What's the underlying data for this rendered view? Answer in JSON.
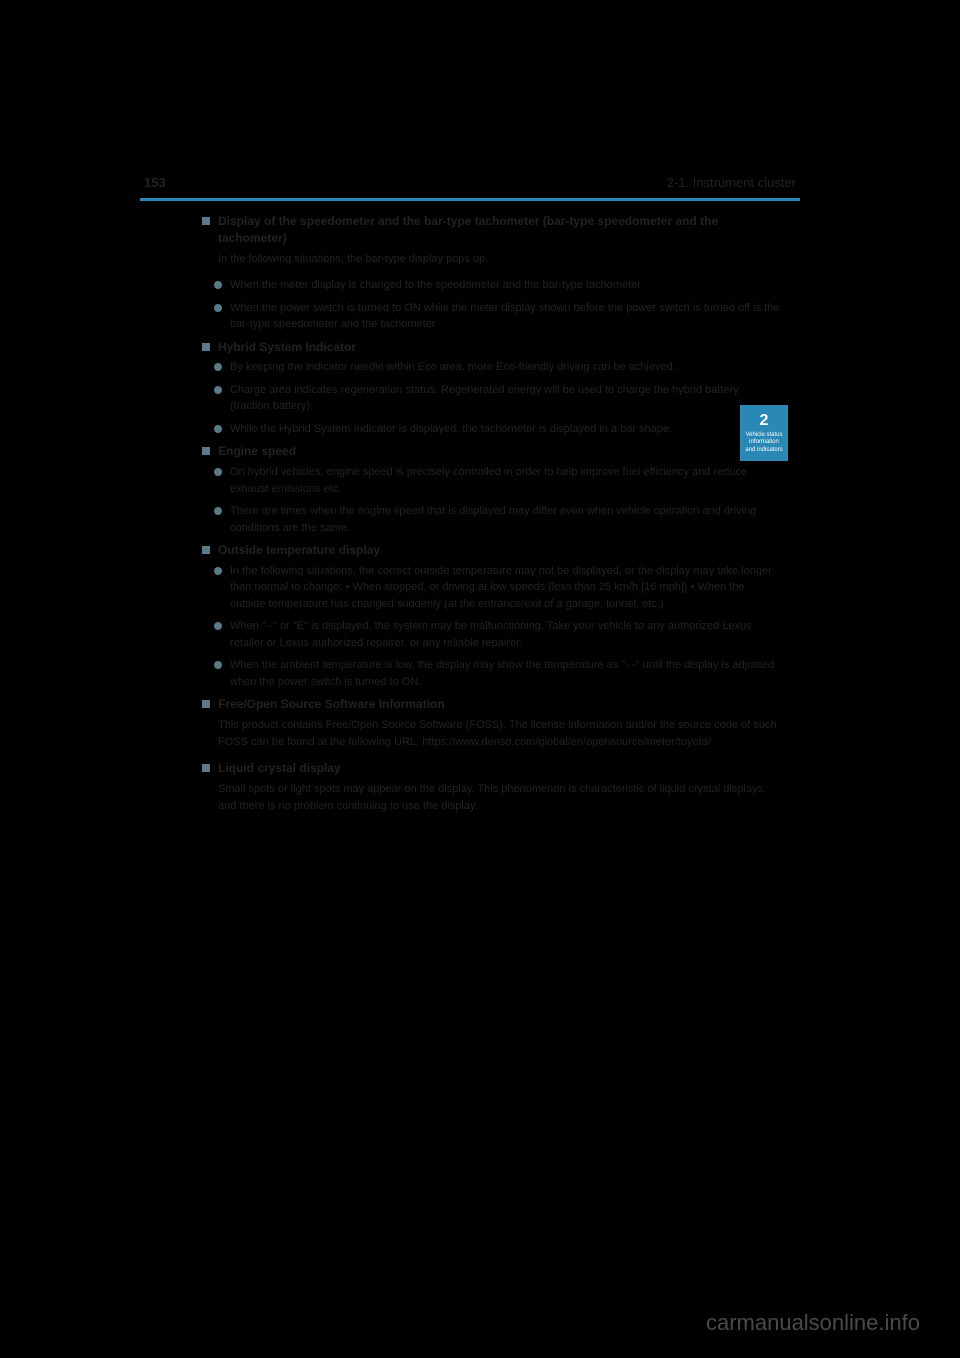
{
  "header": {
    "page_number": "153",
    "section_title": "2-1. Instrument cluster"
  },
  "tab": {
    "number": "2",
    "label": "Vehicle status information and indicators"
  },
  "sections": [
    {
      "heading": "Display of the speedometer and the bar-type tachometer (bar-type speedometer and the tachometer)",
      "intro": "In the following situations, the bar-type display pops up.",
      "bullets": [
        "When the meter display is changed to the speedometer and the bar-type tachometer",
        "When the power switch is turned to ON while the meter display shown before the power switch is turned off is the bar-type speedometer and the tachometer"
      ]
    },
    {
      "heading": "Hybrid System Indicator",
      "intro": "",
      "bullets": [
        "By keeping the indicator needle within Eco area, more Eco-friendly driving can be achieved.",
        "Charge area indicates regeneration status. Regenerated energy will be used to charge the hybrid battery (traction battery).",
        "While the Hybrid System Indicator is displayed, the tachometer is displayed in a bar shape."
      ]
    },
    {
      "heading": "Engine speed",
      "intro": "",
      "bullets": [
        "On hybrid vehicles, engine speed is precisely controlled in order to help improve fuel efficiency and reduce exhaust emissions etc.",
        "There are times when the engine speed that is displayed may differ even when vehicle operation and driving conditions are the same."
      ]
    },
    {
      "heading": "Outside temperature display",
      "intro": "",
      "bullets": [
        "In the following situations, the correct outside temperature may not be displayed, or the display may take longer than normal to change: • When stopped, or driving at low speeds (less than 25 km/h [16 mph]) • When the outside temperature has changed suddenly (at the entrance/exit of a garage, tunnel, etc.)",
        "When \"--\" or \"E\" is displayed, the system may be malfunctioning. Take your vehicle to any authorized Lexus retailer or Lexus authorized repairer, or any reliable repairer.",
        "When the ambient temperature is low, the display may show the temperature as \"- -\" until the display is adjusted when the power switch is turned to ON."
      ]
    },
    {
      "heading": "Free/Open Source Software Information",
      "intro": "This product contains Free/Open Source Software (FOSS). The license information and/or the source code of such FOSS can be found at the following URL. https://www.denso.com/global/en/opensource/meter/toyota/",
      "bullets": []
    },
    {
      "heading": "Liquid crystal display",
      "intro": "Small spots or light spots may appear on the display. This phenomenon is characteristic of liquid crystal displays, and there is no problem continuing to use the display.",
      "bullets": []
    }
  ],
  "watermark": "carmanualsonline.info",
  "colors": {
    "background": "#000000",
    "accent": "#2a88b5",
    "bullet": "#5a7a8a",
    "text": "#222222",
    "watermark": "#4a4a4a"
  }
}
